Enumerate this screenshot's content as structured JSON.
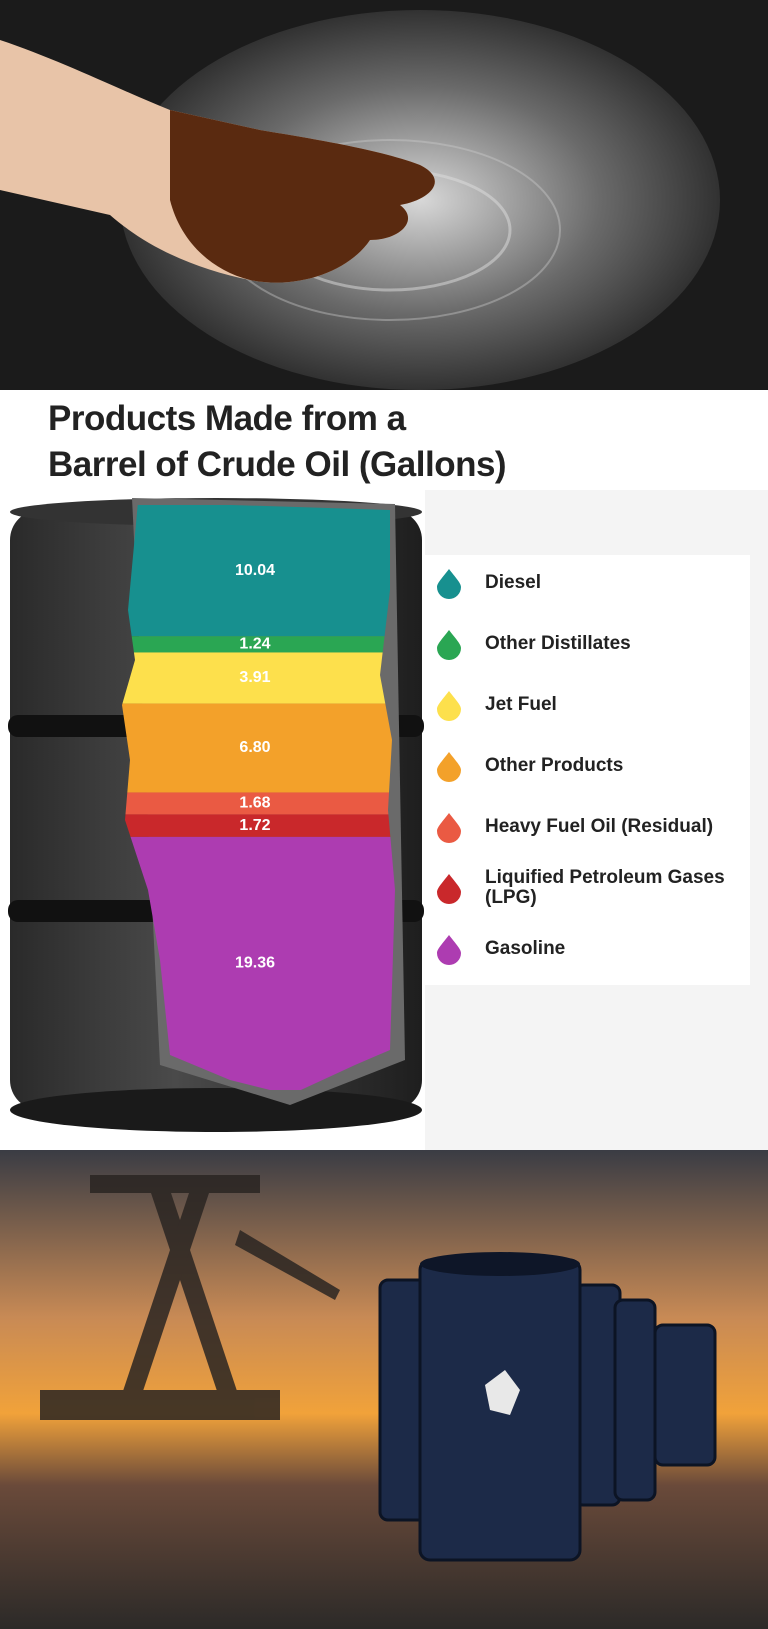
{
  "chart_data": {
    "type": "stacked-barrel",
    "title": "Products Made from a\nBarrel of Crude Oil (Gallons)",
    "categories": [
      "Diesel",
      "Other Distillates",
      "Jet Fuel",
      "Other Products",
      "Heavy Fuel Oil  (Residual)",
      "Liquified Petroleum Gases (LPG)",
      "Gasoline"
    ],
    "values": [
      10.04,
      1.24,
      3.91,
      6.8,
      1.68,
      1.72,
      19.36
    ],
    "value_labels": [
      "10.04",
      "1.24",
      "3.91",
      "6.80",
      "1.68",
      "1.72",
      "19.36"
    ],
    "colors": [
      "#17908f",
      "#2aa653",
      "#fde04c",
      "#f3a12a",
      "#ea5a43",
      "#c9282b",
      "#ad3cb1"
    ]
  }
}
